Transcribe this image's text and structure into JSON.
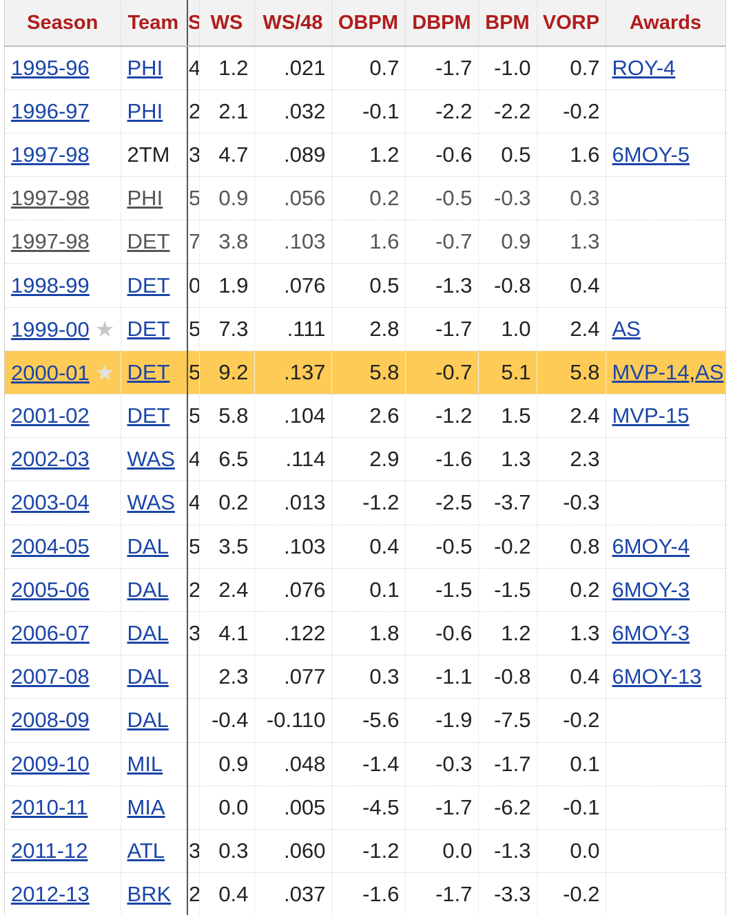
{
  "columns": [
    {
      "key": "season",
      "label": "Season"
    },
    {
      "key": "team",
      "label": "Team"
    },
    {
      "key": "hidden",
      "label": "S"
    },
    {
      "key": "ws",
      "label": "WS"
    },
    {
      "key": "ws48",
      "label": "WS/48"
    },
    {
      "key": "obpm",
      "label": "OBPM"
    },
    {
      "key": "dbpm",
      "label": "DBPM"
    },
    {
      "key": "bpm",
      "label": "BPM"
    },
    {
      "key": "vorp",
      "label": "VORP"
    },
    {
      "key": "awards",
      "label": "Awards"
    }
  ],
  "star_glyph": "★",
  "rows": [
    {
      "season": "1995-96",
      "team": "PHI",
      "team_link": true,
      "hidden": "4",
      "ws": "1.2",
      "ws48": ".021",
      "obpm": "0.7",
      "dbpm": "-1.7",
      "bpm": "-1.0",
      "vorp": "0.7",
      "awards": [
        "ROY-4"
      ],
      "star": false,
      "sub": false,
      "highlight": false
    },
    {
      "season": "1996-97",
      "team": "PHI",
      "team_link": true,
      "hidden": "2",
      "ws": "2.1",
      "ws48": ".032",
      "obpm": "-0.1",
      "dbpm": "-2.2",
      "bpm": "-2.2",
      "vorp": "-0.2",
      "awards": [],
      "star": false,
      "sub": false,
      "highlight": false
    },
    {
      "season": "1997-98",
      "team": "2TM",
      "team_link": false,
      "hidden": "3",
      "ws": "4.7",
      "ws48": ".089",
      "obpm": "1.2",
      "dbpm": "-0.6",
      "bpm": "0.5",
      "vorp": "1.6",
      "awards": [
        "6MOY-5"
      ],
      "star": false,
      "sub": false,
      "highlight": false
    },
    {
      "season": "1997-98",
      "team": "PHI",
      "team_link": true,
      "hidden": "5",
      "ws": "0.9",
      "ws48": ".056",
      "obpm": "0.2",
      "dbpm": "-0.5",
      "bpm": "-0.3",
      "vorp": "0.3",
      "awards": [],
      "star": false,
      "sub": true,
      "highlight": false
    },
    {
      "season": "1997-98",
      "team": "DET",
      "team_link": true,
      "hidden": "7",
      "ws": "3.8",
      "ws48": ".103",
      "obpm": "1.6",
      "dbpm": "-0.7",
      "bpm": "0.9",
      "vorp": "1.3",
      "awards": [],
      "star": false,
      "sub": true,
      "highlight": false
    },
    {
      "season": "1998-99",
      "team": "DET",
      "team_link": true,
      "hidden": "0",
      "ws": "1.9",
      "ws48": ".076",
      "obpm": "0.5",
      "dbpm": "-1.3",
      "bpm": "-0.8",
      "vorp": "0.4",
      "awards": [],
      "star": false,
      "sub": false,
      "highlight": false
    },
    {
      "season": "1999-00",
      "team": "DET",
      "team_link": true,
      "hidden": "5",
      "ws": "7.3",
      "ws48": ".111",
      "obpm": "2.8",
      "dbpm": "-1.7",
      "bpm": "1.0",
      "vorp": "2.4",
      "awards": [
        "AS"
      ],
      "star": true,
      "sub": false,
      "highlight": false
    },
    {
      "season": "2000-01",
      "team": "DET",
      "team_link": true,
      "hidden": "5",
      "ws": "9.2",
      "ws48": ".137",
      "obpm": "5.8",
      "dbpm": "-0.7",
      "bpm": "5.1",
      "vorp": "5.8",
      "awards": [
        "MVP-14",
        "AS"
      ],
      "star": true,
      "sub": false,
      "highlight": true
    },
    {
      "season": "2001-02",
      "team": "DET",
      "team_link": true,
      "hidden": "5",
      "ws": "5.8",
      "ws48": ".104",
      "obpm": "2.6",
      "dbpm": "-1.2",
      "bpm": "1.5",
      "vorp": "2.4",
      "awards": [
        "MVP-15"
      ],
      "star": false,
      "sub": false,
      "highlight": false
    },
    {
      "season": "2002-03",
      "team": "WAS",
      "team_link": true,
      "hidden": "4",
      "ws": "6.5",
      "ws48": ".114",
      "obpm": "2.9",
      "dbpm": "-1.6",
      "bpm": "1.3",
      "vorp": "2.3",
      "awards": [],
      "star": false,
      "sub": false,
      "highlight": false
    },
    {
      "season": "2003-04",
      "team": "WAS",
      "team_link": true,
      "hidden": "4",
      "ws": "0.2",
      "ws48": ".013",
      "obpm": "-1.2",
      "dbpm": "-2.5",
      "bpm": "-3.7",
      "vorp": "-0.3",
      "awards": [],
      "star": false,
      "sub": false,
      "highlight": false
    },
    {
      "season": "2004-05",
      "team": "DAL",
      "team_link": true,
      "hidden": "5",
      "ws": "3.5",
      "ws48": ".103",
      "obpm": "0.4",
      "dbpm": "-0.5",
      "bpm": "-0.2",
      "vorp": "0.8",
      "awards": [
        "6MOY-4"
      ],
      "star": false,
      "sub": false,
      "highlight": false
    },
    {
      "season": "2005-06",
      "team": "DAL",
      "team_link": true,
      "hidden": "2",
      "ws": "2.4",
      "ws48": ".076",
      "obpm": "0.1",
      "dbpm": "-1.5",
      "bpm": "-1.5",
      "vorp": "0.2",
      "awards": [
        "6MOY-3"
      ],
      "star": false,
      "sub": false,
      "highlight": false
    },
    {
      "season": "2006-07",
      "team": "DAL",
      "team_link": true,
      "hidden": "3",
      "ws": "4.1",
      "ws48": ".122",
      "obpm": "1.8",
      "dbpm": "-0.6",
      "bpm": "1.2",
      "vorp": "1.3",
      "awards": [
        "6MOY-3"
      ],
      "star": false,
      "sub": false,
      "highlight": false
    },
    {
      "season": "2007-08",
      "team": "DAL",
      "team_link": true,
      "hidden": "",
      "ws": "2.3",
      "ws48": ".077",
      "obpm": "0.3",
      "dbpm": "-1.1",
      "bpm": "-0.8",
      "vorp": "0.4",
      "awards": [
        "6MOY-13"
      ],
      "star": false,
      "sub": false,
      "highlight": false
    },
    {
      "season": "2008-09",
      "team": "DAL",
      "team_link": true,
      "hidden": "",
      "ws": "-0.4",
      "ws48": "-0.110",
      "obpm": "-5.6",
      "dbpm": "-1.9",
      "bpm": "-7.5",
      "vorp": "-0.2",
      "awards": [],
      "star": false,
      "sub": false,
      "highlight": false
    },
    {
      "season": "2009-10",
      "team": "MIL",
      "team_link": true,
      "hidden": "",
      "ws": "0.9",
      "ws48": ".048",
      "obpm": "-1.4",
      "dbpm": "-0.3",
      "bpm": "-1.7",
      "vorp": "0.1",
      "awards": [],
      "star": false,
      "sub": false,
      "highlight": false
    },
    {
      "season": "2010-11",
      "team": "MIA",
      "team_link": true,
      "hidden": "",
      "ws": "0.0",
      "ws48": ".005",
      "obpm": "-4.5",
      "dbpm": "-1.7",
      "bpm": "-6.2",
      "vorp": "-0.1",
      "awards": [],
      "star": false,
      "sub": false,
      "highlight": false
    },
    {
      "season": "2011-12",
      "team": "ATL",
      "team_link": true,
      "hidden": "3",
      "ws": "0.3",
      "ws48": ".060",
      "obpm": "-1.2",
      "dbpm": "0.0",
      "bpm": "-1.3",
      "vorp": "0.0",
      "awards": [],
      "star": false,
      "sub": false,
      "highlight": false
    },
    {
      "season": "2012-13",
      "team": "BRK",
      "team_link": true,
      "hidden": "2",
      "ws": "0.4",
      "ws48": ".037",
      "obpm": "-1.6",
      "dbpm": "-1.7",
      "bpm": "-3.3",
      "vorp": "-0.2",
      "awards": [],
      "star": false,
      "sub": false,
      "highlight": false
    }
  ]
}
